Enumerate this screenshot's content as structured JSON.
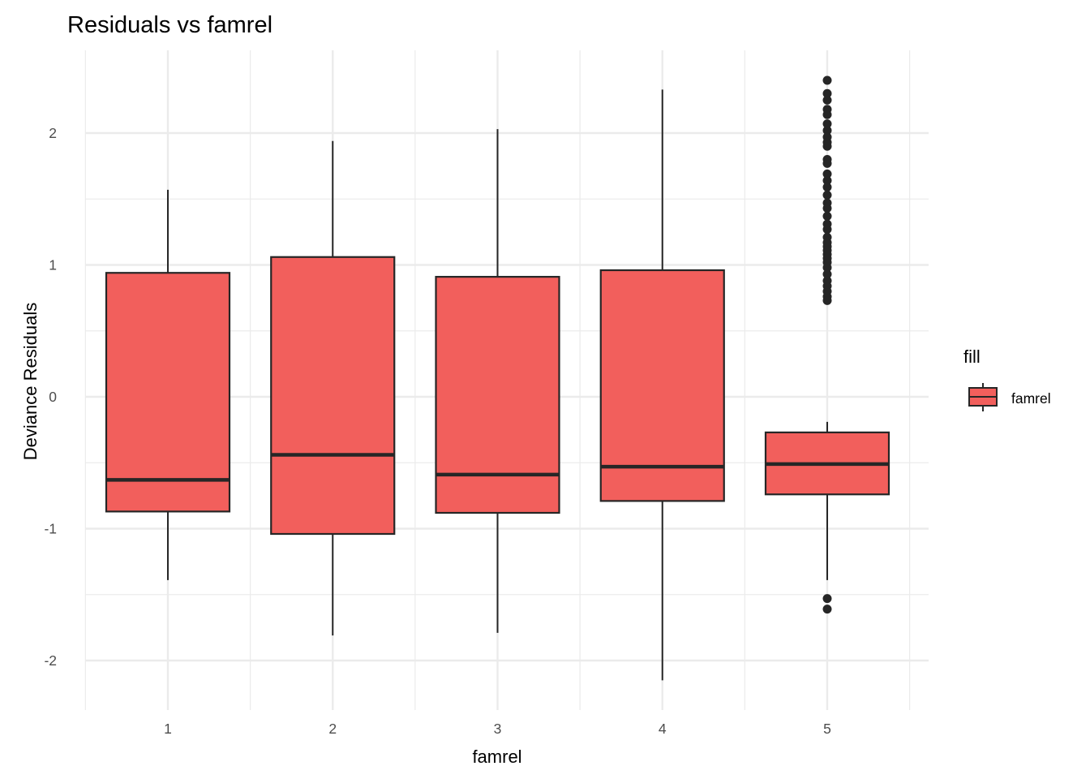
{
  "chart_data": {
    "type": "boxplot",
    "title": "Residuals vs famrel",
    "xlabel": "famrel",
    "ylabel": "Deviance Residuals",
    "categories": [
      "1",
      "2",
      "3",
      "4",
      "5"
    ],
    "ylim": [
      -2.35,
      2.6
    ],
    "y_ticks": [
      -2,
      -1,
      0,
      1,
      2
    ],
    "y_tick_labels": [
      "-2",
      "-1",
      "0",
      "1",
      "2"
    ],
    "grid": true,
    "fill_color": "#F25F5C",
    "line_color": "#262626",
    "legend": {
      "title": "fill",
      "label": "famrel",
      "position": "right"
    },
    "boxes": [
      {
        "category": "1",
        "whisker_low": -1.39,
        "q1": -0.87,
        "median": -0.63,
        "q3": 0.94,
        "whisker_high": 1.57,
        "outliers": []
      },
      {
        "category": "2",
        "whisker_low": -1.81,
        "q1": -1.04,
        "median": -0.44,
        "q3": 1.06,
        "whisker_high": 1.94,
        "outliers": []
      },
      {
        "category": "3",
        "whisker_low": -1.79,
        "q1": -0.88,
        "median": -0.59,
        "q3": 0.91,
        "whisker_high": 2.03,
        "outliers": []
      },
      {
        "category": "4",
        "whisker_low": -2.15,
        "q1": -0.79,
        "median": -0.53,
        "q3": 0.96,
        "whisker_high": 2.33,
        "outliers": []
      },
      {
        "category": "5",
        "whisker_low": -1.39,
        "q1": -0.74,
        "median": -0.51,
        "q3": -0.27,
        "whisker_high": -0.19,
        "outliers": [
          2.4,
          2.3,
          2.25,
          2.18,
          2.14,
          2.07,
          2.02,
          1.97,
          1.93,
          1.9,
          1.8,
          1.77,
          1.69,
          1.64,
          1.59,
          1.53,
          1.47,
          1.43,
          1.37,
          1.31,
          1.27,
          1.21,
          1.17,
          1.14,
          1.11,
          1.08,
          1.05,
          1.02,
          0.98,
          0.93,
          0.88,
          0.84,
          0.8,
          0.76,
          0.73,
          -1.53,
          -1.61
        ]
      }
    ]
  }
}
